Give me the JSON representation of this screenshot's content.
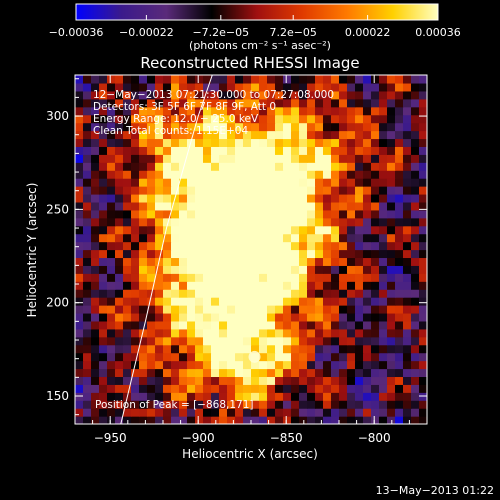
{
  "chart_data": {
    "type": "heatmap",
    "title": "Reconstructed RHESSI Image",
    "xlabel": "Heliocentric X (arcsec)",
    "ylabel": "Heliocentric Y (arcsec)",
    "xlim": [
      -970,
      -770
    ],
    "ylim": [
      135,
      322
    ],
    "x_ticks": [
      {
        "value": -950,
        "label": "−950"
      },
      {
        "value": -900,
        "label": "−900"
      },
      {
        "value": -850,
        "label": "−850"
      },
      {
        "value": -800,
        "label": "−800"
      }
    ],
    "y_ticks": [
      {
        "value": 150,
        "label": "150"
      },
      {
        "value": 200,
        "label": "200"
      },
      {
        "value": 250,
        "label": "250"
      },
      {
        "value": 300,
        "label": "300"
      }
    ],
    "colorbar": {
      "range": [
        -0.00036,
        0.00036
      ],
      "units_label": "(photons cm⁻² s⁻¹ asec⁻²)",
      "ticks": [
        {
          "value": -0.00036,
          "label": "−0.00036"
        },
        {
          "value": -0.00022,
          "label": "−0.00022"
        },
        {
          "value": -7.2e-05,
          "label": "−7.2e−05"
        },
        {
          "value": 7.2e-05,
          "label": "7.2e−05"
        },
        {
          "value": 0.00022,
          "label": "0.00022"
        },
        {
          "value": 0.00036,
          "label": "0.00036"
        }
      ],
      "colormap": [
        "#0000ff",
        "#3a1a8c",
        "#5a2a7a",
        "#000000",
        "#a01010",
        "#e03a00",
        "#ff7a00",
        "#ffd000",
        "#ffffc0"
      ]
    },
    "annotations": [
      "12−May−2013 07:21:30.000 to 07:27:08.000",
      "Detectors: 3F 5F 6F 7F 8F 9F, Att 0",
      "Energy Range: 12.0 − 25.0 keV",
      "Clean    Total counts: 1.15E+04"
    ],
    "peak_label": "Position of Peak = [−868,171]",
    "peak": {
      "x": -868,
      "y": 171
    },
    "limb_line": [
      {
        "x": -944,
        "y": 135
      },
      {
        "x": -930,
        "y": 190
      },
      {
        "x": -918,
        "y": 240
      },
      {
        "x": -900,
        "y": 300
      },
      {
        "x": -892,
        "y": 322
      }
    ],
    "emission_sources": [
      {
        "x": -880,
        "y": 258,
        "amp": 1.0,
        "sx": 28,
        "sy": 30
      },
      {
        "x": -862,
        "y": 230,
        "amp": 0.85,
        "sx": 26,
        "sy": 26
      },
      {
        "x": -868,
        "y": 171,
        "amp": 0.8,
        "sx": 18,
        "sy": 16
      },
      {
        "x": -900,
        "y": 200,
        "amp": 0.65,
        "sx": 26,
        "sy": 32
      },
      {
        "x": -835,
        "y": 285,
        "amp": 0.45,
        "sx": 30,
        "sy": 22
      },
      {
        "x": -920,
        "y": 285,
        "amp": 0.4,
        "sx": 18,
        "sy": 22
      }
    ]
  },
  "footer": {
    "timestamp": "13−May−2013 01:22"
  }
}
